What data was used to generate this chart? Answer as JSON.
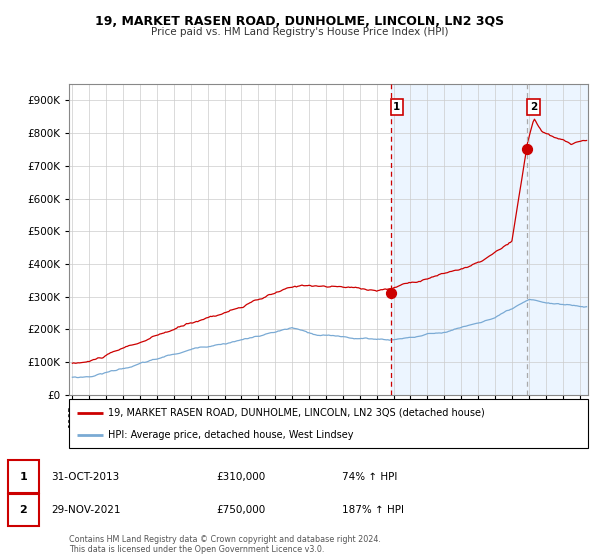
{
  "title": "19, MARKET RASEN ROAD, DUNHOLME, LINCOLN, LN2 3QS",
  "subtitle": "Price paid vs. HM Land Registry's House Price Index (HPI)",
  "legend_line1": "19, MARKET RASEN ROAD, DUNHOLME, LINCOLN, LN2 3QS (detached house)",
  "legend_line2": "HPI: Average price, detached house, West Lindsey",
  "transaction1_label": "1",
  "transaction1_date": "31-OCT-2013",
  "transaction1_price": "£310,000",
  "transaction1_hpi": "74% ↑ HPI",
  "transaction2_label": "2",
  "transaction2_date": "29-NOV-2021",
  "transaction2_price": "£750,000",
  "transaction2_hpi": "187% ↑ HPI",
  "footer": "Contains HM Land Registry data © Crown copyright and database right 2024.\nThis data is licensed under the Open Government Licence v3.0.",
  "red_color": "#cc0000",
  "blue_color": "#7aaad4",
  "bg_shaded": "#ddeeff",
  "dashed_red_x": 2013.83,
  "dashed_grey_x": 2021.92,
  "point1_x": 2013.83,
  "point1_y": 310000,
  "point2_x": 2021.92,
  "point2_y": 750000,
  "ylim": [
    0,
    950000
  ],
  "xlim_start": 1994.8,
  "xlim_end": 2025.5
}
